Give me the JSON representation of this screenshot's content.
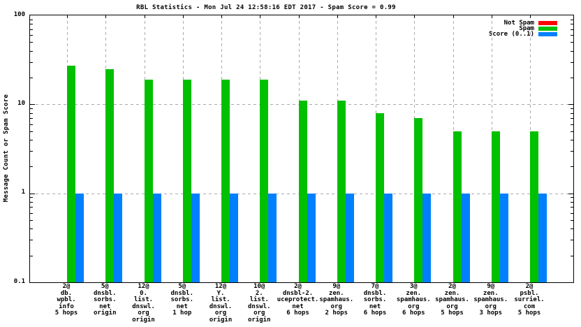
{
  "title": "RBL Statistics - Mon Jul 24 12:58:16 EDT 2017 - Spam Score = 0.99",
  "chart_data": {
    "type": "bar",
    "title": "RBL Statistics - Mon Jul 24 12:58:16 EDT 2017 - Spam Score = 0.99",
    "xlabel": "",
    "ylabel": "Message Count or Spam Score",
    "yscale": "log",
    "ylim": [
      0.1,
      100
    ],
    "yticks": [
      {
        "value": 100,
        "label": "100"
      },
      {
        "value": 10,
        "label": "10"
      },
      {
        "value": 1,
        "label": "1"
      },
      {
        "value": 0.1,
        "label": "0.1"
      }
    ],
    "grid": true,
    "legend_position": "top-right-inside",
    "categories": [
      [
        "2@",
        "db.",
        "wpbl.",
        "info",
        "5 hops"
      ],
      [
        "5@",
        "dnsbl.",
        "sorbs.",
        "net",
        "origin"
      ],
      [
        "12@",
        "0.",
        "list.",
        "dnswl.",
        "org",
        "origin"
      ],
      [
        "5@",
        "dnsbl.",
        "sorbs.",
        "net",
        "1 hop"
      ],
      [
        "12@",
        "Y.",
        "list.",
        "dnswl.",
        "org",
        "origin"
      ],
      [
        "10@",
        "2.",
        "list.",
        "dnswl.",
        "org",
        "origin"
      ],
      [
        "2@",
        "dnsbl-2.",
        "uceprotect.",
        "net",
        "6 hops"
      ],
      [
        "9@",
        "zen.",
        "spamhaus.",
        "org",
        "2 hops"
      ],
      [
        "7@",
        "dnsbl.",
        "sorbs.",
        "net",
        "6 hops"
      ],
      [
        "3@",
        "zen.",
        "spamhaus.",
        "org",
        "6 hops"
      ],
      [
        "2@",
        "zen.",
        "spamhaus.",
        "org",
        "5 hops"
      ],
      [
        "9@",
        "zen.",
        "spamhaus.",
        "org",
        "3 hops"
      ],
      [
        "2@",
        "psbl.",
        "surriel.",
        "com",
        "5 hops"
      ]
    ],
    "series": [
      {
        "name": "Not Spam",
        "color": "#ff0000",
        "values": [
          0,
          0,
          0,
          0,
          0,
          0,
          0,
          0,
          0,
          0,
          0,
          0,
          0
        ]
      },
      {
        "name": "Spam",
        "color": "#00c000",
        "values": [
          27,
          25,
          19,
          19,
          19,
          19,
          11,
          11,
          8,
          7,
          5,
          5,
          5
        ]
      },
      {
        "name": "Score (0..1)",
        "color": "#0080ff",
        "values": [
          1,
          1,
          1,
          1,
          1,
          1,
          1,
          1,
          1,
          1,
          1,
          1,
          1
        ]
      }
    ]
  }
}
